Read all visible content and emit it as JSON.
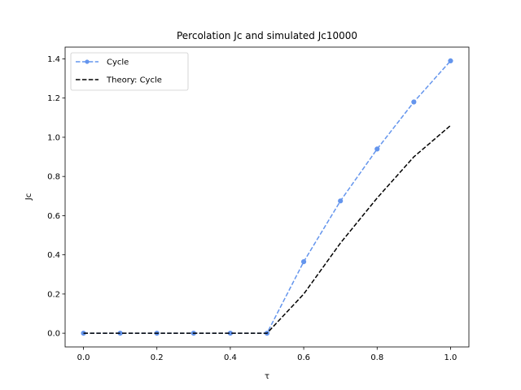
{
  "chart_data": {
    "type": "line",
    "title": "Percolation Jc and simulated Jc10000",
    "xlabel": "τ",
    "ylabel": "Jc",
    "xlim": [
      -0.05,
      1.05
    ],
    "ylim": [
      -0.07,
      1.46
    ],
    "xticks": [
      0.0,
      0.2,
      0.4,
      0.6,
      0.8,
      1.0
    ],
    "xtick_labels": [
      "0.0",
      "0.2",
      "0.4",
      "0.6",
      "0.8",
      "1.0"
    ],
    "yticks": [
      0.0,
      0.2,
      0.4,
      0.6,
      0.8,
      1.0,
      1.2,
      1.4
    ],
    "ytick_labels": [
      "0.0",
      "0.2",
      "0.4",
      "0.6",
      "0.8",
      "1.0",
      "1.2",
      "1.4"
    ],
    "grid": false,
    "legend_position": "top-left",
    "series": [
      {
        "name": "Cycle",
        "color": "#6495ED",
        "style": "dashed",
        "marker": "circle",
        "x": [
          0.0,
          0.1,
          0.2,
          0.3,
          0.4,
          0.5,
          0.6,
          0.7,
          0.8,
          0.9,
          1.0
        ],
        "y": [
          0.0,
          0.0,
          0.0,
          0.0,
          0.0,
          0.0,
          0.365,
          0.675,
          0.94,
          1.18,
          1.39
        ]
      },
      {
        "name": "Theory: Cycle",
        "color": "#000000",
        "style": "dashed",
        "marker": "none",
        "x": [
          0.0,
          0.1,
          0.2,
          0.3,
          0.4,
          0.5,
          0.6,
          0.7,
          0.8,
          0.9,
          1.0
        ],
        "y": [
          0.0,
          0.0,
          0.0,
          0.0,
          0.0,
          0.0,
          0.2,
          0.46,
          0.69,
          0.9,
          1.06
        ]
      }
    ]
  }
}
